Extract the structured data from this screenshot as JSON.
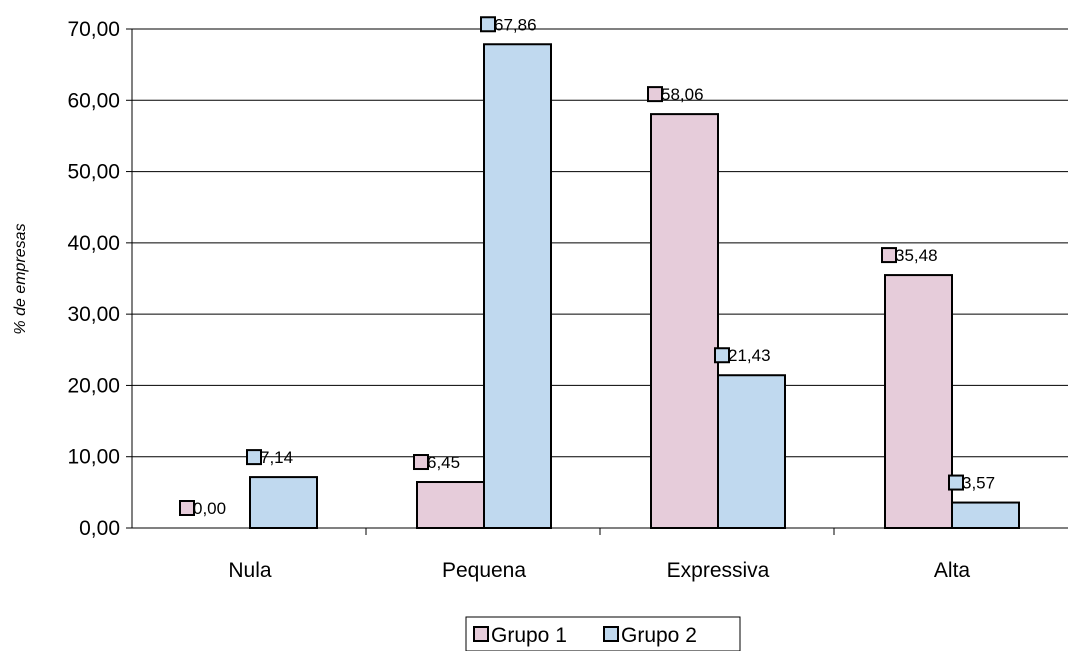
{
  "chart_data": {
    "type": "bar",
    "categories": [
      "Nula",
      "Pequena",
      "Expressiva",
      "Alta"
    ],
    "series": [
      {
        "name": "Grupo 1",
        "values": [
          0.0,
          6.45,
          58.06,
          35.48
        ],
        "labels": [
          "0,00",
          "6,45",
          "58,06",
          "35,48"
        ],
        "color": "#E6CCDA"
      },
      {
        "name": "Grupo 2",
        "values": [
          7.14,
          67.86,
          21.43,
          3.57
        ],
        "labels": [
          "7,14",
          "67,86",
          "21,43",
          "3,57"
        ],
        "color": "#C0D9EF"
      }
    ],
    "ylabel": "% de empresas",
    "xlabel": "",
    "ylim": [
      0,
      70
    ],
    "yticks": [
      0,
      10,
      20,
      30,
      40,
      50,
      60,
      70
    ],
    "ytick_labels": [
      "0,00",
      "10,00",
      "20,00",
      "30,00",
      "40,00",
      "50,00",
      "60,00",
      "70,00"
    ],
    "grid": true,
    "legend_position": "bottom"
  }
}
